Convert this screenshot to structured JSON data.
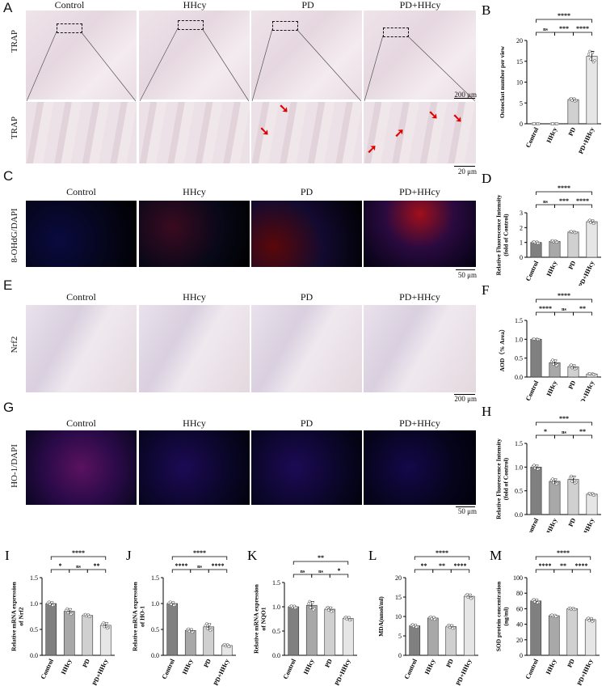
{
  "panels": {
    "A": {
      "letter": "A",
      "row_label": "TRAP",
      "columns": [
        "Control",
        "HHcy",
        "PD",
        "PD+HHcy"
      ],
      "scale_top": "200 μm",
      "scale_bottom": "20 μm"
    },
    "C": {
      "letter": "C",
      "row_label": "8-OHdG/DAPI",
      "columns": [
        "Control",
        "HHcy",
        "PD",
        "PD+HHcy"
      ],
      "scale": "50 μm"
    },
    "E": {
      "letter": "E",
      "row_label": "Nrf2",
      "columns": [
        "Control",
        "HHcy",
        "PD",
        "PD+HHcy"
      ],
      "scale": "200 μm"
    },
    "G": {
      "letter": "G",
      "row_label": "HO-1/DAPI",
      "columns": [
        "Control",
        "HHcy",
        "PD",
        "PD+HHcy"
      ],
      "scale": "50 μm"
    }
  },
  "colors": {
    "dark_bar": "#808080",
    "mid_bar": "#a8a8a8",
    "light_bar": "#d0d0d0",
    "lightest_bar": "#e6e6e6",
    "arrow": "#dd0000"
  },
  "chart_data": [
    {
      "id": "B",
      "letter": "B",
      "type": "bar",
      "categories": [
        "Control",
        "HHcy",
        "PD",
        "PD+HHcy"
      ],
      "values": [
        0,
        0,
        5.8,
        16.2
      ],
      "errors": [
        0,
        0,
        0.3,
        1.2
      ],
      "ylabel": "Osteoclast number per view",
      "ylim": [
        0,
        20
      ],
      "yticks": [
        0,
        5,
        10,
        15,
        20
      ],
      "sig": [
        {
          "a": 0,
          "b": 1,
          "t": "ns",
          "lvl": 0
        },
        {
          "a": 1,
          "b": 2,
          "t": "***",
          "lvl": 0
        },
        {
          "a": 2,
          "b": 3,
          "t": "****",
          "lvl": 0
        },
        {
          "a": 0,
          "b": 3,
          "t": "****",
          "lvl": 1
        }
      ]
    },
    {
      "id": "D",
      "letter": "D",
      "type": "bar",
      "categories": [
        "Control",
        "HHcy",
        "PD",
        "PD+HHcy"
      ],
      "values": [
        1.0,
        1.07,
        1.7,
        2.4
      ],
      "errors": [
        0.05,
        0.05,
        0.04,
        0.1
      ],
      "ylabel": "Relative Fluorescence Intensity(fold of Control)",
      "ylim": [
        0,
        3
      ],
      "yticks": [
        0,
        1,
        2,
        3
      ],
      "sig": [
        {
          "a": 0,
          "b": 1,
          "t": "ns",
          "lvl": 0
        },
        {
          "a": 1,
          "b": 2,
          "t": "***",
          "lvl": 0
        },
        {
          "a": 2,
          "b": 3,
          "t": "****",
          "lvl": 0
        },
        {
          "a": 0,
          "b": 3,
          "t": "****",
          "lvl": 1
        }
      ]
    },
    {
      "id": "F",
      "letter": "F",
      "type": "bar",
      "categories": [
        "Control",
        "HHcy",
        "PD",
        "PD+HHcy"
      ],
      "values": [
        1.0,
        0.38,
        0.27,
        0.08
      ],
      "errors": [
        0.005,
        0.07,
        0.05,
        0.01
      ],
      "ylabel": "AOD（% Area）",
      "ylim": [
        0,
        1.5
      ],
      "yticks": [
        0.0,
        0.5,
        1.0,
        1.5
      ],
      "sig": [
        {
          "a": 0,
          "b": 1,
          "t": "****",
          "lvl": 0
        },
        {
          "a": 1,
          "b": 2,
          "t": "ns",
          "lvl": 0
        },
        {
          "a": 2,
          "b": 3,
          "t": "**",
          "lvl": 0
        },
        {
          "a": 0,
          "b": 3,
          "t": "****",
          "lvl": 1
        }
      ]
    },
    {
      "id": "H",
      "letter": "H",
      "type": "bar",
      "categories": [
        "Control",
        "HHcy",
        "PD",
        "PD+HHcy"
      ],
      "values": [
        1.0,
        0.7,
        0.74,
        0.43
      ],
      "errors": [
        0.04,
        0.05,
        0.07,
        0.02
      ],
      "ylabel": "Relative Fluorescence Intensity(fold of Control)",
      "ylim": [
        0,
        1.5
      ],
      "yticks": [
        0.0,
        0.5,
        1.0,
        1.5
      ],
      "sig": [
        {
          "a": 0,
          "b": 1,
          "t": "*",
          "lvl": 0
        },
        {
          "a": 1,
          "b": 2,
          "t": "ns",
          "lvl": 0
        },
        {
          "a": 2,
          "b": 3,
          "t": "**",
          "lvl": 0
        },
        {
          "a": 0,
          "b": 3,
          "t": "***",
          "lvl": 1
        }
      ]
    },
    {
      "id": "I",
      "letter": "I",
      "type": "bar",
      "categories": [
        "Control",
        "HHcy",
        "PD",
        "PD+HHcy"
      ],
      "values": [
        1.0,
        0.85,
        0.77,
        0.58
      ],
      "errors": [
        0.03,
        0.05,
        0.02,
        0.05
      ],
      "ylabel": "Relative mRNA expression of Nrf2",
      "ylim": [
        0,
        1.5
      ],
      "yticks": [
        0.0,
        0.5,
        1.0,
        1.5
      ],
      "sig": [
        {
          "a": 0,
          "b": 1,
          "t": "*",
          "lvl": 0
        },
        {
          "a": 1,
          "b": 2,
          "t": "ns",
          "lvl": 0
        },
        {
          "a": 2,
          "b": 3,
          "t": "**",
          "lvl": 0
        },
        {
          "a": 0,
          "b": 3,
          "t": "****",
          "lvl": 1
        }
      ]
    },
    {
      "id": "J",
      "letter": "J",
      "type": "bar",
      "categories": [
        "Control",
        "HHcy",
        "PD",
        "PD+HHcy"
      ],
      "values": [
        1.0,
        0.48,
        0.55,
        0.19
      ],
      "errors": [
        0.03,
        0.03,
        0.06,
        0.02
      ],
      "ylabel": "Relative mRNA expression of HO-1",
      "ylim": [
        0,
        1.5
      ],
      "yticks": [
        0.0,
        0.5,
        1.0,
        1.5
      ],
      "sig": [
        {
          "a": 0,
          "b": 1,
          "t": "****",
          "lvl": 0
        },
        {
          "a": 1,
          "b": 2,
          "t": "ns",
          "lvl": 0
        },
        {
          "a": 2,
          "b": 3,
          "t": "****",
          "lvl": 0
        },
        {
          "a": 0,
          "b": 3,
          "t": "****",
          "lvl": 1
        }
      ]
    },
    {
      "id": "K",
      "letter": "K",
      "type": "bar",
      "categories": [
        "Control",
        "HHcy",
        "PD",
        "PD+HHcy"
      ],
      "values": [
        1.0,
        1.03,
        0.95,
        0.76
      ],
      "errors": [
        0.02,
        0.08,
        0.04,
        0.03
      ],
      "ylabel": "Relative mRNA expression of NQO1",
      "ylim": [
        0,
        1.5
      ],
      "yticks": [
        0.0,
        0.5,
        1.0,
        1.5
      ],
      "sig": [
        {
          "a": 0,
          "b": 1,
          "t": "ns",
          "lvl": 0
        },
        {
          "a": 1,
          "b": 2,
          "t": "ns",
          "lvl": 0
        },
        {
          "a": 2,
          "b": 3,
          "t": "*",
          "lvl": 0
        },
        {
          "a": 0,
          "b": 3,
          "t": "**",
          "lvl": 1
        }
      ]
    },
    {
      "id": "L",
      "letter": "L",
      "type": "bar",
      "categories": [
        "Control",
        "HHcy",
        "PD",
        "PD+HHcy"
      ],
      "values": [
        7.6,
        9.6,
        7.4,
        15.2
      ],
      "errors": [
        0.3,
        0.3,
        0.4,
        0.5
      ],
      "ylabel": "MDA(nmol/ml)",
      "ylim": [
        0,
        20
      ],
      "yticks": [
        0,
        5,
        10,
        15,
        20
      ],
      "sig": [
        {
          "a": 0,
          "b": 1,
          "t": "**",
          "lvl": 0
        },
        {
          "a": 1,
          "b": 2,
          "t": "**",
          "lvl": 0
        },
        {
          "a": 2,
          "b": 3,
          "t": "****",
          "lvl": 0
        },
        {
          "a": 0,
          "b": 3,
          "t": "****",
          "lvl": 1
        }
      ]
    },
    {
      "id": "M",
      "letter": "M",
      "type": "bar",
      "categories": [
        "Control",
        "HHcy",
        "PD",
        "PD+HHcy"
      ],
      "values": [
        70,
        51,
        60,
        46
      ],
      "errors": [
        2,
        1,
        1,
        2
      ],
      "ylabel": "SOD protein concentration(ng/ml)",
      "ylim": [
        0,
        100
      ],
      "yticks": [
        0,
        20,
        40,
        60,
        80,
        100
      ],
      "sig": [
        {
          "a": 0,
          "b": 1,
          "t": "****",
          "lvl": 0
        },
        {
          "a": 1,
          "b": 2,
          "t": "**",
          "lvl": 0
        },
        {
          "a": 2,
          "b": 3,
          "t": "****",
          "lvl": 0
        },
        {
          "a": 0,
          "b": 3,
          "t": "****",
          "lvl": 1
        }
      ]
    }
  ]
}
